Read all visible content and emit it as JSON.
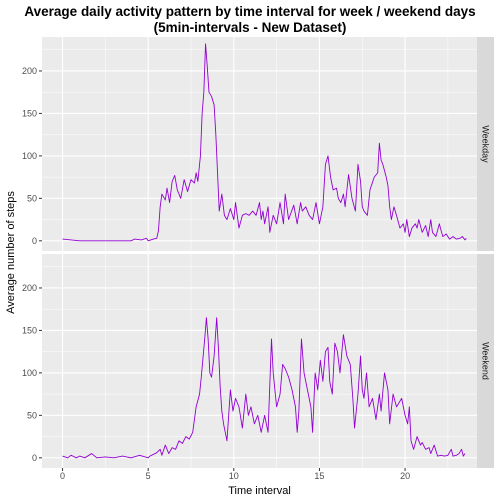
{
  "chart_data": {
    "type": "line",
    "title_line1": "Average daily activity pattern by time interval for week / weekend days",
    "title_line2": "(5min-intervals - New Dataset)",
    "xlabel": "Time interval",
    "ylabel": "Average number of steps",
    "xlim": [
      -1.2,
      24.2
    ],
    "ylim": [
      -12,
      240
    ],
    "x_ticks": [
      0,
      5,
      10,
      15,
      20
    ],
    "y_ticks": [
      0,
      50,
      100,
      150,
      200
    ],
    "line_color": "#9400D3",
    "panel_background": "#EBEBEB",
    "strip_background": "#D9D9D9",
    "grid": true,
    "facets": [
      {
        "strip_label": "Weekday",
        "points": [
          [
            0,
            2
          ],
          [
            0.5,
            1
          ],
          [
            1,
            0
          ],
          [
            2,
            0
          ],
          [
            3,
            0
          ],
          [
            4,
            0
          ],
          [
            4.2,
            2
          ],
          [
            4.6,
            1
          ],
          [
            4.9,
            3
          ],
          [
            5,
            0
          ],
          [
            5.3,
            2
          ],
          [
            5.5,
            3
          ],
          [
            5.6,
            12
          ],
          [
            5.7,
            40
          ],
          [
            5.8,
            55
          ],
          [
            6,
            48
          ],
          [
            6.1,
            62
          ],
          [
            6.25,
            45
          ],
          [
            6.4,
            70
          ],
          [
            6.55,
            77
          ],
          [
            6.7,
            60
          ],
          [
            6.9,
            50
          ],
          [
            7.1,
            72
          ],
          [
            7.3,
            58
          ],
          [
            7.5,
            72
          ],
          [
            7.7,
            68
          ],
          [
            7.8,
            80
          ],
          [
            7.9,
            70
          ],
          [
            8.05,
            100
          ],
          [
            8.15,
            150
          ],
          [
            8.25,
            175
          ],
          [
            8.35,
            232
          ],
          [
            8.45,
            205
          ],
          [
            8.55,
            175
          ],
          [
            8.7,
            170
          ],
          [
            8.85,
            160
          ],
          [
            8.95,
            125
          ],
          [
            9.05,
            80
          ],
          [
            9.15,
            35
          ],
          [
            9.3,
            55
          ],
          [
            9.45,
            30
          ],
          [
            9.6,
            25
          ],
          [
            9.8,
            38
          ],
          [
            10.0,
            25
          ],
          [
            10.1,
            45
          ],
          [
            10.3,
            15
          ],
          [
            10.5,
            30
          ],
          [
            10.7,
            32
          ],
          [
            10.9,
            30
          ],
          [
            11.1,
            35
          ],
          [
            11.3,
            30
          ],
          [
            11.5,
            45
          ],
          [
            11.6,
            25
          ],
          [
            11.7,
            35
          ],
          [
            11.8,
            20
          ],
          [
            12.0,
            40
          ],
          [
            12.1,
            10
          ],
          [
            12.3,
            30
          ],
          [
            12.5,
            20
          ],
          [
            12.7,
            45
          ],
          [
            12.9,
            20
          ],
          [
            13.0,
            55
          ],
          [
            13.2,
            25
          ],
          [
            13.5,
            42
          ],
          [
            13.7,
            20
          ],
          [
            13.9,
            45
          ],
          [
            14.0,
            35
          ],
          [
            14.2,
            40
          ],
          [
            14.4,
            30
          ],
          [
            14.6,
            25
          ],
          [
            14.8,
            45
          ],
          [
            15.0,
            20
          ],
          [
            15.2,
            40
          ],
          [
            15.35,
            90
          ],
          [
            15.5,
            100
          ],
          [
            15.65,
            75
          ],
          [
            15.8,
            60
          ],
          [
            16.0,
            62
          ],
          [
            16.1,
            50
          ],
          [
            16.25,
            45
          ],
          [
            16.4,
            55
          ],
          [
            16.5,
            40
          ],
          [
            16.7,
            78
          ],
          [
            16.9,
            50
          ],
          [
            17.1,
            35
          ],
          [
            17.25,
            90
          ],
          [
            17.4,
            70
          ],
          [
            17.5,
            40
          ],
          [
            17.6,
            35
          ],
          [
            17.8,
            30
          ],
          [
            17.95,
            60
          ],
          [
            18.2,
            75
          ],
          [
            18.4,
            80
          ],
          [
            18.5,
            115
          ],
          [
            18.6,
            95
          ],
          [
            18.7,
            90
          ],
          [
            18.9,
            75
          ],
          [
            19.0,
            65
          ],
          [
            19.1,
            40
          ],
          [
            19.2,
            25
          ],
          [
            19.35,
            40
          ],
          [
            19.5,
            30
          ],
          [
            19.7,
            15
          ],
          [
            19.9,
            20
          ],
          [
            20.0,
            10
          ],
          [
            20.1,
            25
          ],
          [
            20.25,
            5
          ],
          [
            20.4,
            15
          ],
          [
            20.6,
            20
          ],
          [
            20.7,
            15
          ],
          [
            20.8,
            25
          ],
          [
            21.0,
            10
          ],
          [
            21.2,
            18
          ],
          [
            21.35,
            5
          ],
          [
            21.5,
            25
          ],
          [
            21.6,
            10
          ],
          [
            21.8,
            5
          ],
          [
            22.0,
            20
          ],
          [
            22.2,
            5
          ],
          [
            22.4,
            8
          ],
          [
            22.6,
            2
          ],
          [
            22.8,
            5
          ],
          [
            23.0,
            2
          ],
          [
            23.2,
            3
          ],
          [
            23.35,
            5
          ],
          [
            23.5,
            1
          ],
          [
            23.58,
            3
          ]
        ]
      },
      {
        "strip_label": "Weekend",
        "points": [
          [
            0,
            2
          ],
          [
            0.3,
            0
          ],
          [
            0.5,
            3
          ],
          [
            0.8,
            0
          ],
          [
            1,
            2
          ],
          [
            1.3,
            0
          ],
          [
            1.7,
            5
          ],
          [
            2,
            0
          ],
          [
            2.5,
            1
          ],
          [
            3,
            0
          ],
          [
            3.5,
            2
          ],
          [
            4,
            0
          ],
          [
            4.5,
            3
          ],
          [
            5,
            0
          ],
          [
            5.1,
            2
          ],
          [
            5.3,
            4
          ],
          [
            5.5,
            6
          ],
          [
            5.7,
            10
          ],
          [
            5.8,
            3
          ],
          [
            6.0,
            15
          ],
          [
            6.2,
            5
          ],
          [
            6.4,
            12
          ],
          [
            6.6,
            10
          ],
          [
            6.8,
            20
          ],
          [
            7.0,
            17
          ],
          [
            7.2,
            25
          ],
          [
            7.4,
            22
          ],
          [
            7.6,
            30
          ],
          [
            7.8,
            60
          ],
          [
            8.0,
            75
          ],
          [
            8.1,
            95
          ],
          [
            8.3,
            140
          ],
          [
            8.4,
            165
          ],
          [
            8.5,
            140
          ],
          [
            8.6,
            100
          ],
          [
            8.7,
            95
          ],
          [
            8.85,
            120
          ],
          [
            9.0,
            165
          ],
          [
            9.1,
            130
          ],
          [
            9.2,
            85
          ],
          [
            9.3,
            55
          ],
          [
            9.4,
            40
          ],
          [
            9.6,
            20
          ],
          [
            9.8,
            80
          ],
          [
            9.95,
            55
          ],
          [
            10.1,
            70
          ],
          [
            10.3,
            60
          ],
          [
            10.5,
            35
          ],
          [
            10.7,
            75
          ],
          [
            10.85,
            50
          ],
          [
            11.0,
            60
          ],
          [
            11.2,
            40
          ],
          [
            11.4,
            50
          ],
          [
            11.6,
            30
          ],
          [
            11.8,
            50
          ],
          [
            12.0,
            30
          ],
          [
            12.2,
            140
          ],
          [
            12.3,
            100
          ],
          [
            12.5,
            60
          ],
          [
            12.7,
            75
          ],
          [
            12.85,
            110
          ],
          [
            13.0,
            105
          ],
          [
            13.2,
            95
          ],
          [
            13.4,
            80
          ],
          [
            13.6,
            60
          ],
          [
            13.7,
            30
          ],
          [
            13.8,
            55
          ],
          [
            13.95,
            140
          ],
          [
            14.1,
            100
          ],
          [
            14.3,
            80
          ],
          [
            14.5,
            60
          ],
          [
            14.6,
            30
          ],
          [
            14.75,
            100
          ],
          [
            14.9,
            80
          ],
          [
            15.05,
            115
          ],
          [
            15.2,
            90
          ],
          [
            15.35,
            125
          ],
          [
            15.5,
            130
          ],
          [
            15.6,
            90
          ],
          [
            15.75,
            75
          ],
          [
            15.9,
            135
          ],
          [
            16.05,
            125
          ],
          [
            16.2,
            100
          ],
          [
            16.4,
            145
          ],
          [
            16.6,
            120
          ],
          [
            16.8,
            110
          ],
          [
            16.95,
            70
          ],
          [
            17.05,
            35
          ],
          [
            17.25,
            75
          ],
          [
            17.4,
            120
          ],
          [
            17.5,
            80
          ],
          [
            17.6,
            70
          ],
          [
            17.75,
            100
          ],
          [
            17.9,
            60
          ],
          [
            18.1,
            70
          ],
          [
            18.3,
            45
          ],
          [
            18.5,
            75
          ],
          [
            18.6,
            55
          ],
          [
            18.8,
            100
          ],
          [
            19.0,
            80
          ],
          [
            19.1,
            40
          ],
          [
            19.3,
            75
          ],
          [
            19.5,
            60
          ],
          [
            19.8,
            70
          ],
          [
            20.0,
            50
          ],
          [
            20.15,
            40
          ],
          [
            20.25,
            60
          ],
          [
            20.35,
            20
          ],
          [
            20.5,
            10
          ],
          [
            20.7,
            25
          ],
          [
            20.9,
            15
          ],
          [
            21.0,
            18
          ],
          [
            21.2,
            10
          ],
          [
            21.4,
            12
          ],
          [
            21.5,
            5
          ],
          [
            21.7,
            15
          ],
          [
            21.9,
            2
          ],
          [
            22.1,
            3
          ],
          [
            22.3,
            2
          ],
          [
            22.5,
            3
          ],
          [
            22.7,
            10
          ],
          [
            22.8,
            2
          ],
          [
            23.0,
            3
          ],
          [
            23.15,
            5
          ],
          [
            23.3,
            10
          ],
          [
            23.4,
            2
          ],
          [
            23.5,
            5
          ]
        ]
      }
    ]
  }
}
